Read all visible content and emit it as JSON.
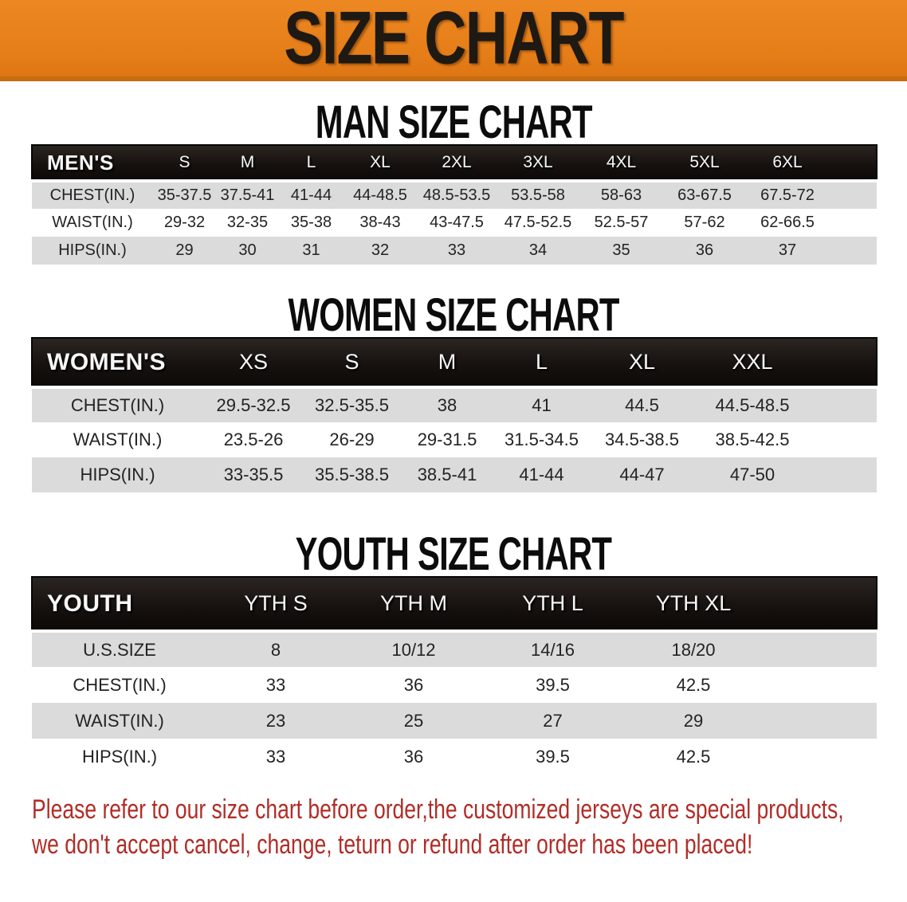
{
  "banner": {
    "title": "SIZE CHART"
  },
  "sections": [
    {
      "heading": "MAN SIZE CHART",
      "corner_label": "MEN'S",
      "columns": [
        "S",
        "M",
        "L",
        "XL",
        "2XL",
        "3XL",
        "4XL",
        "5XL",
        "6XL"
      ],
      "rows": [
        {
          "label": "CHEST(IN.)",
          "values": [
            "35-37.5",
            "37.5-41",
            "41-44",
            "44-48.5",
            "48.5-53.5",
            "53.5-58",
            "58-63",
            "63-67.5",
            "67.5-72"
          ]
        },
        {
          "label": "WAIST(IN.)",
          "values": [
            "29-32",
            "32-35",
            "35-38",
            "38-43",
            "43-47.5",
            "47.5-52.5",
            "52.5-57",
            "57-62",
            "62-66.5"
          ]
        },
        {
          "label": "HIPS(IN.)",
          "values": [
            "29",
            "30",
            "31",
            "32",
            "33",
            "34",
            "35",
            "36",
            "37"
          ]
        }
      ]
    },
    {
      "heading": "WOMEN SIZE CHART",
      "corner_label": "WOMEN'S",
      "columns": [
        "XS",
        "S",
        "M",
        "L",
        "XL",
        "XXL"
      ],
      "rows": [
        {
          "label": "CHEST(IN.)",
          "values": [
            "29.5-32.5",
            "32.5-35.5",
            "38",
            "41",
            "44.5",
            "44.5-48.5"
          ]
        },
        {
          "label": "WAIST(IN.)",
          "values": [
            "23.5-26",
            "26-29",
            "29-31.5",
            "31.5-34.5",
            "34.5-38.5",
            "38.5-42.5"
          ]
        },
        {
          "label": "HIPS(IN.)",
          "values": [
            "33-35.5",
            "35.5-38.5",
            "38.5-41",
            "41-44",
            "44-47",
            "47-50"
          ]
        }
      ]
    },
    {
      "heading": "YOUTH SIZE CHART",
      "corner_label": "YOUTH",
      "columns": [
        "YTH S",
        "YTH M",
        "YTH L",
        "YTH XL"
      ],
      "rows": [
        {
          "label": "U.S.SIZE",
          "values": [
            "8",
            "10/12",
            "14/16",
            "18/20"
          ]
        },
        {
          "label": "CHEST(IN.)",
          "values": [
            "33",
            "36",
            "39.5",
            "42.5"
          ]
        },
        {
          "label": "WAIST(IN.)",
          "values": [
            "23",
            "25",
            "27",
            "29"
          ]
        },
        {
          "label": "HIPS(IN.)",
          "values": [
            "33",
            "36",
            "39.5",
            "42.5"
          ]
        }
      ]
    }
  ],
  "disclaimer": {
    "line1": "Please refer to our size chart before order,the customized jerseys are special products,",
    "line2": "we don't accept cancel, change, teturn or refund after order has been placed!"
  },
  "colors": {
    "banner_orange": "#e67e18",
    "banner_border": "#c76d11",
    "table_header_black": "#17120f",
    "row_gray": "#dbdbdb",
    "row_white": "#ffffff",
    "disclaimer_red": "#b12d27"
  }
}
